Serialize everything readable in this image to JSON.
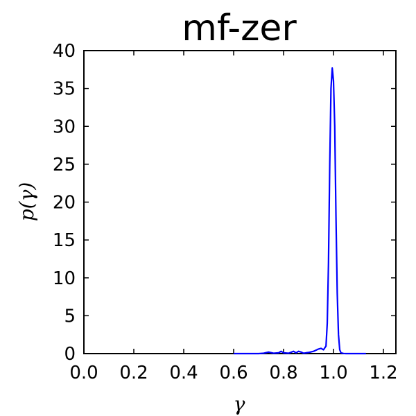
{
  "chart_data": {
    "type": "line",
    "title": "mf-zer",
    "xlabel": "γ",
    "ylabel": "p(γ)",
    "xlim": [
      0.0,
      1.25
    ],
    "ylim": [
      0,
      40
    ],
    "xticks": [
      0.0,
      0.2,
      0.4,
      0.6,
      0.8,
      1.0,
      1.2
    ],
    "yticks": [
      0,
      5,
      10,
      15,
      20,
      25,
      30,
      35,
      40
    ],
    "xtick_labels": [
      "0.0",
      "0.2",
      "0.4",
      "0.6",
      "0.8",
      "1.0",
      "1.2"
    ],
    "ytick_labels": [
      "0",
      "5",
      "10",
      "15",
      "20",
      "25",
      "30",
      "35",
      "40"
    ],
    "grid": false,
    "series": [
      {
        "color": "#0000ff",
        "x": [
          0.6,
          0.65,
          0.7,
          0.72,
          0.74,
          0.76,
          0.78,
          0.79,
          0.8,
          0.82,
          0.84,
          0.85,
          0.86,
          0.87,
          0.88,
          0.89,
          0.9,
          0.92,
          0.94,
          0.95,
          0.96,
          0.97,
          0.975,
          0.98,
          0.985,
          0.99,
          0.995,
          1.0,
          1.005,
          1.01,
          1.015,
          1.02,
          1.025,
          1.03,
          1.04,
          1.05,
          1.08,
          1.1,
          1.13
        ],
        "y": [
          0,
          0,
          0,
          0.05,
          0.2,
          0.05,
          0.1,
          0.3,
          0.1,
          0.05,
          0.3,
          0.1,
          0.3,
          0.2,
          0.05,
          0.1,
          0.15,
          0.3,
          0.6,
          0.7,
          0.5,
          1.0,
          4.0,
          12.0,
          25.0,
          35.0,
          37.7,
          36.0,
          30.0,
          18.0,
          8.0,
          2.5,
          0.5,
          0.1,
          0.02,
          0,
          0,
          0,
          0
        ]
      }
    ]
  }
}
